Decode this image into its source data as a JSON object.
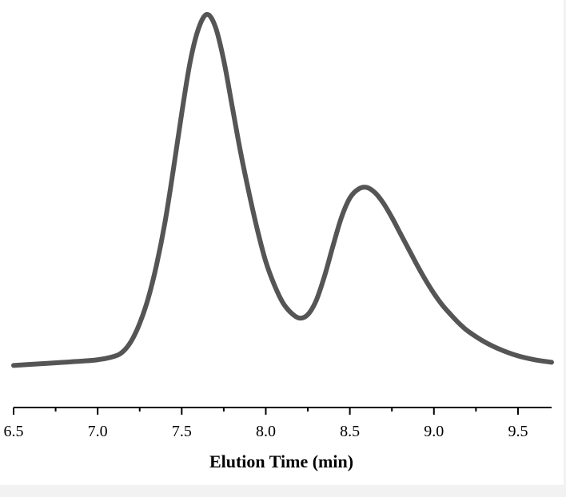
{
  "chart_data": {
    "type": "line",
    "title": "",
    "xlabel": "Elution Time (min)",
    "ylabel": "",
    "xlim": [
      6.5,
      9.7
    ],
    "ylim": [
      0,
      1.06
    ],
    "x_ticks": [
      "6.5",
      "7.0",
      "7.5",
      "8.0",
      "8.5",
      "9.0",
      "9.5"
    ],
    "y_axis_visible": false,
    "grid": false,
    "legend": "none",
    "series": [
      {
        "color": "#555555",
        "points": [
          [
            6.5,
            0.006
          ],
          [
            6.6,
            0.009
          ],
          [
            6.7,
            0.012
          ],
          [
            6.8,
            0.015
          ],
          [
            6.9,
            0.018
          ],
          [
            7.0,
            0.022
          ],
          [
            7.1,
            0.032
          ],
          [
            7.15,
            0.045
          ],
          [
            7.2,
            0.075
          ],
          [
            7.25,
            0.125
          ],
          [
            7.3,
            0.195
          ],
          [
            7.35,
            0.29
          ],
          [
            7.4,
            0.41
          ],
          [
            7.45,
            0.56
          ],
          [
            7.5,
            0.72
          ],
          [
            7.55,
            0.865
          ],
          [
            7.6,
            0.96
          ],
          [
            7.65,
            1.0
          ],
          [
            7.7,
            0.965
          ],
          [
            7.75,
            0.87
          ],
          [
            7.8,
            0.74
          ],
          [
            7.85,
            0.61
          ],
          [
            7.9,
            0.495
          ],
          [
            7.95,
            0.39
          ],
          [
            8.0,
            0.3
          ],
          [
            8.05,
            0.235
          ],
          [
            8.1,
            0.185
          ],
          [
            8.15,
            0.155
          ],
          [
            8.2,
            0.14
          ],
          [
            8.25,
            0.15
          ],
          [
            8.3,
            0.19
          ],
          [
            8.35,
            0.26
          ],
          [
            8.4,
            0.345
          ],
          [
            8.45,
            0.425
          ],
          [
            8.5,
            0.48
          ],
          [
            8.55,
            0.505
          ],
          [
            8.6,
            0.51
          ],
          [
            8.65,
            0.495
          ],
          [
            8.7,
            0.465
          ],
          [
            8.75,
            0.425
          ],
          [
            8.8,
            0.38
          ],
          [
            8.85,
            0.335
          ],
          [
            8.9,
            0.29
          ],
          [
            8.95,
            0.248
          ],
          [
            9.0,
            0.21
          ],
          [
            9.05,
            0.177
          ],
          [
            9.1,
            0.15
          ],
          [
            9.15,
            0.125
          ],
          [
            9.2,
            0.104
          ],
          [
            9.3,
            0.073
          ],
          [
            9.4,
            0.05
          ],
          [
            9.5,
            0.033
          ],
          [
            9.6,
            0.022
          ],
          [
            9.7,
            0.015
          ]
        ]
      }
    ]
  }
}
